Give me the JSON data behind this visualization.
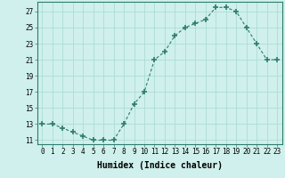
{
  "x": [
    0,
    1,
    2,
    3,
    4,
    5,
    6,
    7,
    8,
    9,
    10,
    11,
    12,
    13,
    14,
    15,
    16,
    17,
    18,
    19,
    20,
    21,
    22,
    23
  ],
  "y": [
    13,
    13,
    12.5,
    12,
    11.5,
    11,
    11,
    11,
    13,
    15.5,
    17,
    21,
    22,
    24,
    25,
    25.5,
    26,
    27.5,
    27.5,
    27,
    25,
    23,
    21,
    21
  ],
  "line_color": "#2e7d6e",
  "marker": "+",
  "marker_size": 4,
  "marker_linewidth": 1.2,
  "bg_color": "#cff0ec",
  "grid_color": "#a8d8d0",
  "xlabel": "Humidex (Indice chaleur)",
  "xlabel_fontsize": 7,
  "yticks": [
    11,
    13,
    15,
    17,
    19,
    21,
    23,
    25,
    27
  ],
  "xtick_labels": [
    "0",
    "1",
    "2",
    "3",
    "4",
    "5",
    "6",
    "7",
    "8",
    "9",
    "10",
    "11",
    "12",
    "13",
    "14",
    "15",
    "16",
    "17",
    "18",
    "19",
    "20",
    "21",
    "22",
    "23"
  ],
  "xlim": [
    -0.5,
    23.5
  ],
  "ylim": [
    10.5,
    28.2
  ],
  "tick_fontsize": 5.5,
  "xlabel_fontweight": "bold"
}
